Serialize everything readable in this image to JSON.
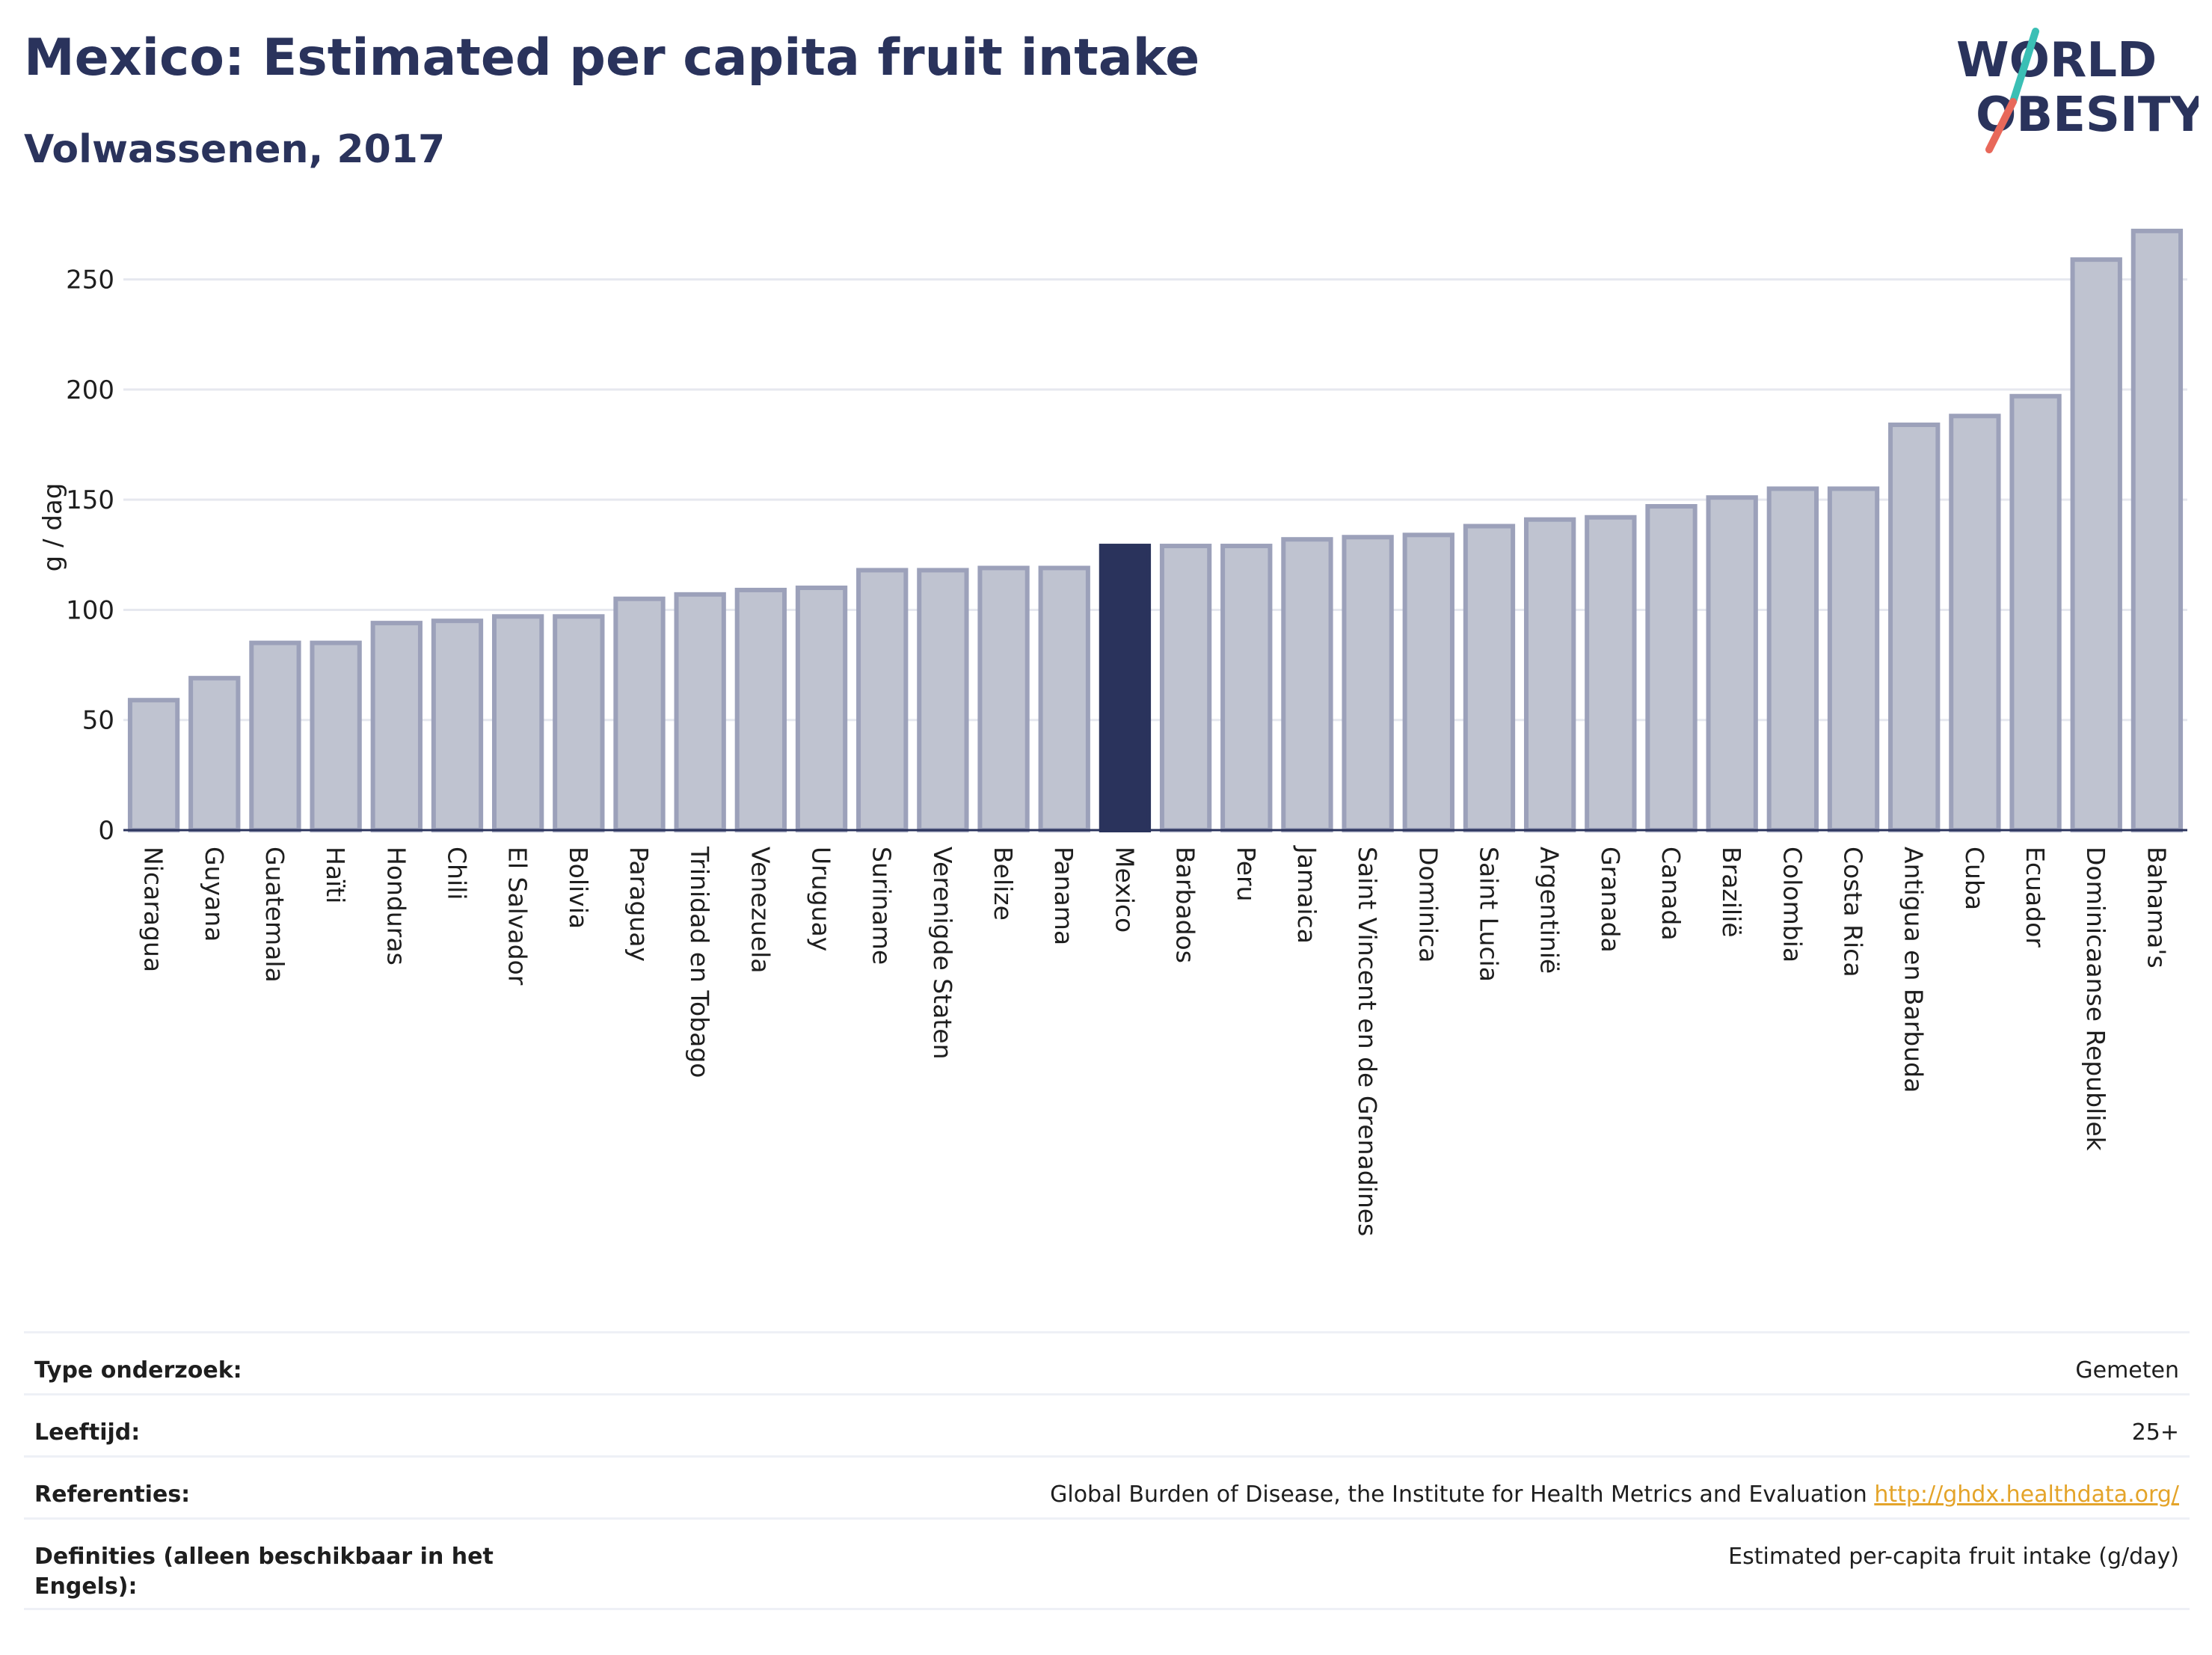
{
  "header": {
    "title": "Mexico: Estimated per capita fruit intake",
    "subtitle": "Volwassenen, 2017"
  },
  "logo": {
    "line1": "WORLD",
    "line2": "OBESITY",
    "colors": {
      "text": "#2a335c",
      "slash_top": "#3bbfb5",
      "slash_bottom": "#e8685a"
    }
  },
  "chart_data": {
    "type": "bar",
    "ylabel": "g / dag",
    "ylim": [
      0,
      275
    ],
    "yticks": [
      0,
      50,
      100,
      150,
      200,
      250
    ],
    "grid": true,
    "highlight": "Mexico",
    "colors": {
      "bar": "#bfc3d0",
      "bar_border": "#9ca1ba",
      "highlight": "#2a335c",
      "grid": "#e6e8ef"
    },
    "categories": [
      "Nicaragua",
      "Guyana",
      "Guatemala",
      "Haïti",
      "Honduras",
      "Chili",
      "El Salvador",
      "Bolivia",
      "Paraguay",
      "Trinidad en Tobago",
      "Venezuela",
      "Uruguay",
      "Suriname",
      "Verenigde Staten",
      "Belize",
      "Panama",
      "Mexico",
      "Barbados",
      "Peru",
      "Jamaica",
      "Saint Vincent en de Grenadines",
      "Dominica",
      "Saint Lucia",
      "Argentinië",
      "Granada",
      "Canada",
      "Brazilië",
      "Colombia",
      "Costa Rica",
      "Antigua en Barbuda",
      "Cuba",
      "Ecuador",
      "Dominicaanse Republiek",
      "Bahama's"
    ],
    "values": [
      59,
      69,
      85,
      85,
      94,
      95,
      97,
      97,
      105,
      107,
      109,
      110,
      118,
      118,
      119,
      119,
      129,
      129,
      129,
      132,
      133,
      134,
      138,
      141,
      142,
      147,
      151,
      155,
      155,
      184,
      188,
      197,
      259,
      272
    ]
  },
  "footer": {
    "rows": [
      {
        "label": "Type onderzoek:",
        "value": "Gemeten"
      },
      {
        "label": "Leeftijd:",
        "value": "25+"
      },
      {
        "label": "Referenties:",
        "value": "Global Burden of Disease, the Institute for Health Metrics and Evaluation",
        "link": "http://ghdx.healthdata.org/"
      },
      {
        "label": "Definities (alleen beschikbaar in het Engels):",
        "value": "Estimated per-capita fruit intake (g/day)"
      }
    ]
  }
}
